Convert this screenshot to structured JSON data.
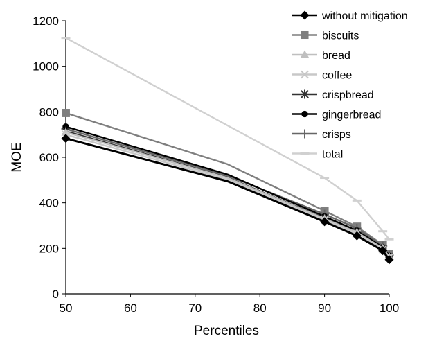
{
  "chart_data": {
    "type": "line",
    "title": "",
    "xlabel": "Percentiles",
    "ylabel": "MOE",
    "xlim": [
      50,
      100
    ],
    "ylim": [
      0,
      1200
    ],
    "xticks": [
      "50",
      "60",
      "70",
      "80",
      "90",
      "100"
    ],
    "yticks": [
      "0",
      "200",
      "400",
      "600",
      "800",
      "1000",
      "1200"
    ],
    "grid": false,
    "legend_position": "top-right",
    "x": [
      50,
      75,
      90,
      95,
      99,
      100
    ],
    "series": [
      {
        "name": "without mitigation",
        "marker": "diamond",
        "color": "#000000",
        "values": [
          683,
          495,
          317,
          255,
          190,
          150
        ]
      },
      {
        "name": "biscuits",
        "marker": "square",
        "color": "#7f7f7f",
        "values": [
          795,
          570,
          365,
          295,
          215,
          175
        ]
      },
      {
        "name": "bread",
        "marker": "triangle",
        "color": "#bfbfbf",
        "values": [
          710,
          510,
          330,
          270,
          200,
          163
        ]
      },
      {
        "name": "coffee",
        "marker": "x",
        "color": "#c8c8c8",
        "values": [
          700,
          502,
          325,
          265,
          195,
          160
        ]
      },
      {
        "name": "crispbread",
        "marker": "star",
        "color": "#333333",
        "values": [
          715,
          512,
          332,
          272,
          200,
          163
        ]
      },
      {
        "name": "gingerbread",
        "marker": "circle",
        "color": "#000000",
        "values": [
          735,
          525,
          340,
          278,
          205,
          167
        ]
      },
      {
        "name": "crisps",
        "marker": "plus",
        "color": "#666666",
        "values": [
          725,
          520,
          350,
          288,
          210,
          170
        ]
      },
      {
        "name": "total",
        "marker": "dash",
        "color": "#d0d0d0",
        "values": [
          1125,
          740,
          510,
          410,
          275,
          240
        ]
      }
    ]
  }
}
